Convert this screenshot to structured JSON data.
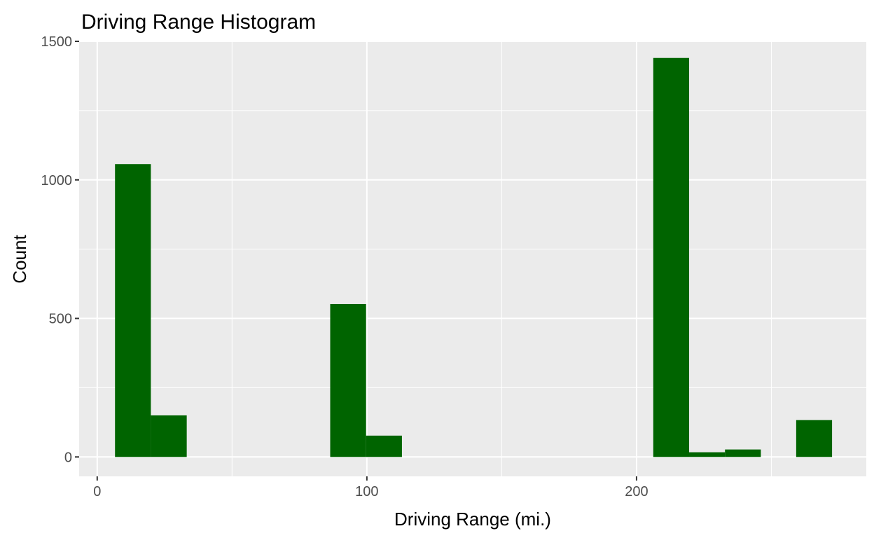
{
  "chart_data": {
    "type": "bar",
    "subtype": "histogram",
    "title": "Driving Range Histogram",
    "xlabel": "Driving Range (mi.)",
    "ylabel": "Count",
    "xlim": [
      -6.7,
      285.2
    ],
    "ylim": [
      -70,
      1500
    ],
    "x_ticks": [
      0,
      100,
      200
    ],
    "x_tick_labels": [
      "0",
      "100",
      "200"
    ],
    "y_ticks": [
      0,
      500,
      1000,
      1500
    ],
    "y_tick_labels": [
      "0",
      "500",
      "1000",
      "1500"
    ],
    "bin_width": 13.3,
    "bins": [
      {
        "x0": 6.6,
        "x1": 19.9,
        "count": 1057
      },
      {
        "x0": 19.9,
        "x1": 33.2,
        "count": 150
      },
      {
        "x0": 86.4,
        "x1": 99.7,
        "count": 552
      },
      {
        "x0": 99.7,
        "x1": 113.0,
        "count": 77
      },
      {
        "x0": 206.2,
        "x1": 219.5,
        "count": 1440
      },
      {
        "x0": 219.5,
        "x1": 232.8,
        "count": 17
      },
      {
        "x0": 232.8,
        "x1": 246.1,
        "count": 27
      },
      {
        "x0": 259.2,
        "x1": 272.5,
        "count": 133
      }
    ],
    "fill_color": "#006400",
    "panel_color": "#ebebeb",
    "grid": true,
    "legend": "none"
  }
}
